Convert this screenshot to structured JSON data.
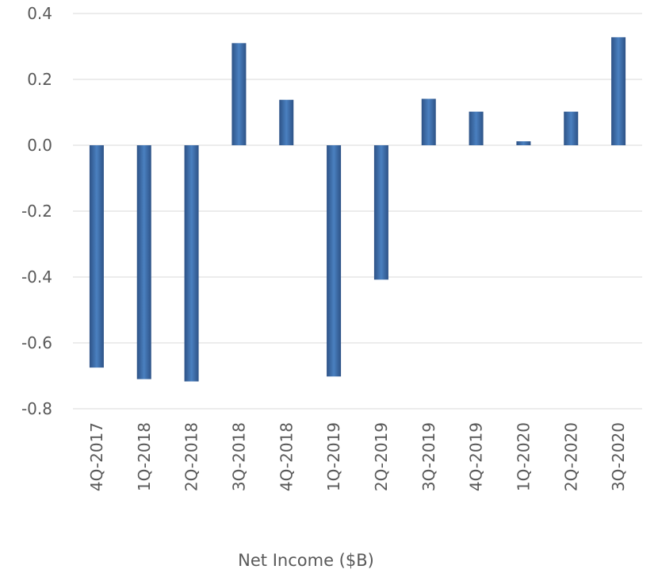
{
  "chart_data": {
    "type": "bar",
    "categories": [
      "4Q-2017",
      "1Q-2018",
      "2Q-2018",
      "3Q-2018",
      "4Q-2018",
      "1Q-2019",
      "2Q-2019",
      "3Q-2019",
      "4Q-2019",
      "1Q-2020",
      "2Q-2020",
      "3Q-2020"
    ],
    "series": [
      {
        "values": [
          -0.675,
          -0.71,
          -0.717,
          0.31,
          0.138,
          -0.702,
          -0.408,
          0.141,
          0.102,
          0.012,
          0.102,
          0.328
        ]
      }
    ],
    "title": "",
    "xlabel": "Net Income ($B)",
    "ylabel": "",
    "ylim": [
      -0.8,
      0.4
    ],
    "yticks": [
      0.4,
      0.2,
      0.0,
      -0.2,
      -0.4,
      -0.6,
      -0.8
    ],
    "ytick_labels": [
      "0.4",
      "0.2",
      "0.0",
      "-0.2",
      "-0.4",
      "-0.6",
      "-0.8"
    ],
    "grid": true,
    "legend": "none",
    "bar_color": "#3a6aa6",
    "bar_color_edge": "#2b4f7e"
  }
}
